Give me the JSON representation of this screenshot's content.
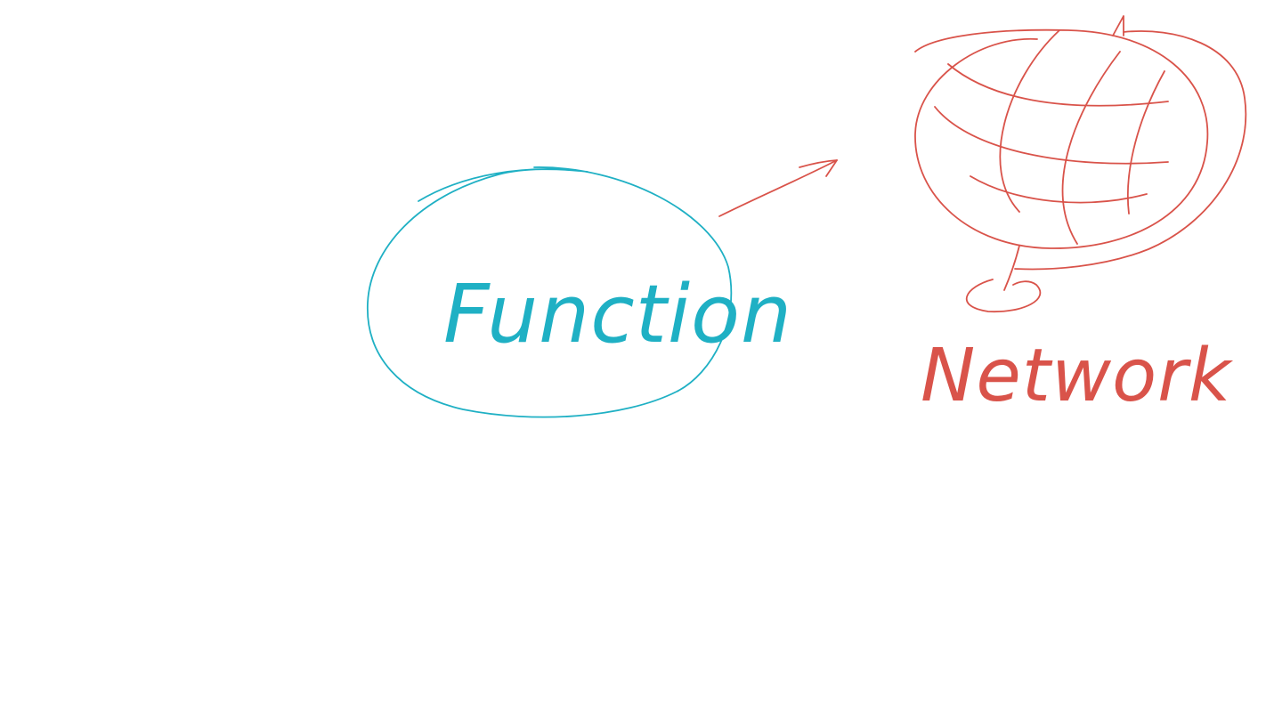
{
  "diagram": {
    "nodes": [
      {
        "id": "function",
        "label": "Function",
        "shape": "ellipse",
        "color": "#1fb0c4"
      },
      {
        "id": "network",
        "label": "Network",
        "shape": "globe",
        "color": "#d9534a"
      }
    ],
    "edges": [
      {
        "from": "function",
        "to": "network",
        "color": "#d9534a",
        "style": "arrow"
      }
    ]
  }
}
